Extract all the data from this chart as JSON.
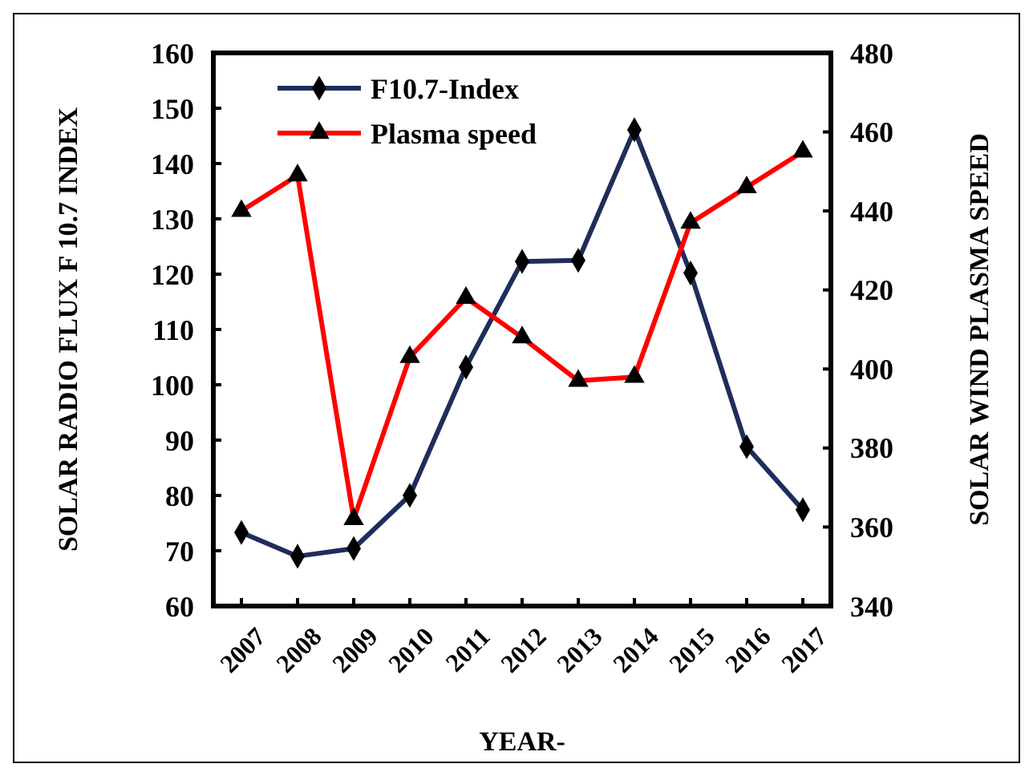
{
  "chart_data": {
    "type": "line",
    "xlabel": "YEAR-",
    "ylabel": "SOLAR RADIO FLUX F 10.7 INDEX",
    "y2label": "SOLAR WIND PLASMA SPEED",
    "categories": [
      "2007",
      "2008",
      "2009",
      "2010",
      "2011",
      "2012",
      "2013",
      "2014",
      "2015",
      "2016",
      "2017"
    ],
    "series": [
      {
        "name": "F10.7-Index",
        "color": "#1f2d5c",
        "marker": "diamond",
        "values": [
          73.3,
          69,
          70.4,
          80,
          103.2,
          122.3,
          122.5,
          146.1,
          120.2,
          88.8,
          77.4
        ]
      },
      {
        "name": "Plasma speed",
        "color": "#ff0000",
        "marker": "triangle",
        "axis": "y2",
        "values": [
          440,
          449,
          362,
          403,
          418,
          408,
          397,
          398,
          437,
          446,
          455
        ]
      }
    ],
    "ylim": [
      60,
      160
    ],
    "yticks": [
      60,
      70,
      80,
      90,
      100,
      110,
      120,
      130,
      140,
      150,
      160
    ],
    "y2lim": [
      340,
      480
    ],
    "y2ticks": [
      340,
      360,
      380,
      400,
      420,
      440,
      460,
      480
    ],
    "legend": "top left"
  }
}
